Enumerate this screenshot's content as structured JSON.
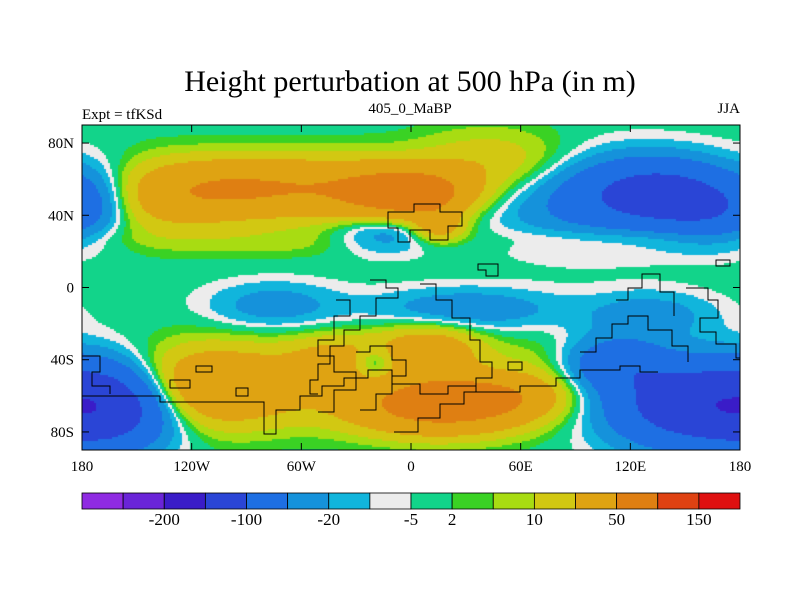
{
  "chart_data": {
    "type": "heatmap",
    "title": "Height perturbation at 500 hPa (in m)",
    "left_string": "Expt = tfKSd",
    "center_string": "405_0_MaBP",
    "right_string": "JJA",
    "xlim": [
      -180,
      180
    ],
    "ylim": [
      -90,
      90
    ],
    "x_ticks": [
      {
        "value": -180,
        "label": "180"
      },
      {
        "value": -120,
        "label": "120W"
      },
      {
        "value": -60,
        "label": "60W"
      },
      {
        "value": 0,
        "label": "0"
      },
      {
        "value": 60,
        "label": "60E"
      },
      {
        "value": 120,
        "label": "120E"
      },
      {
        "value": 180,
        "label": "180"
      }
    ],
    "y_ticks": [
      {
        "value": 80,
        "label": "80N"
      },
      {
        "value": 40,
        "label": "40N"
      },
      {
        "value": 0,
        "label": "0"
      },
      {
        "value": -40,
        "label": "40S"
      },
      {
        "value": -80,
        "label": "80S"
      }
    ],
    "colorbar": {
      "colors": [
        "#8f2be2",
        "#6a24d8",
        "#3a1cc8",
        "#2a45d6",
        "#1e6fe3",
        "#1592db",
        "#11b5dc",
        "#ececec",
        "#12d48a",
        "#3ad224",
        "#a8dc12",
        "#d2c812",
        "#dfa312",
        "#df7f12",
        "#df4212",
        "#df1010"
      ],
      "labels": [
        {
          "after_index": 1,
          "label": "-200"
        },
        {
          "after_index": 3,
          "label": "-100"
        },
        {
          "after_index": 5,
          "label": "-20"
        },
        {
          "after_index": 7,
          "label": "-5"
        },
        {
          "after_index": 8,
          "label": "2"
        },
        {
          "after_index": 10,
          "label": "10"
        },
        {
          "after_index": 12,
          "label": "50"
        },
        {
          "after_index": 14,
          "label": "150"
        }
      ]
    },
    "features": [
      {
        "lon": -95,
        "lat": 55,
        "value": 40,
        "slon": 30,
        "slat": 11
      },
      {
        "lon": -135,
        "lat": 50,
        "value": 25,
        "slon": 30,
        "slat": 14
      },
      {
        "lon": -40,
        "lat": 55,
        "value": 35,
        "slon": 30,
        "slat": 12
      },
      {
        "lon": 0,
        "lat": 52,
        "value": 75,
        "slon": 22,
        "slat": 9
      },
      {
        "lon": 45,
        "lat": 68,
        "value": 20,
        "slon": 30,
        "slat": 13
      },
      {
        "lon": 90,
        "lat": 48,
        "value": -20,
        "slon": 35,
        "slat": 17
      },
      {
        "lon": 135,
        "lat": 52,
        "value": -60,
        "slon": 28,
        "slat": 13
      },
      {
        "lon": 165,
        "lat": 42,
        "value": -30,
        "slon": 20,
        "slat": 12
      },
      {
        "lon": -170,
        "lat": 50,
        "value": -15,
        "slon": 15,
        "slat": 14
      },
      {
        "lon": -15,
        "lat": 30,
        "value": -18,
        "slon": 20,
        "slat": 8
      },
      {
        "lon": 15,
        "lat": 34,
        "value": 30,
        "slon": 10,
        "slat": 6
      },
      {
        "lon": 120,
        "lat": 28,
        "value": 8,
        "slon": 50,
        "slat": 5
      },
      {
        "lon": -70,
        "lat": 25,
        "value": 6,
        "slon": 45,
        "slat": 6
      },
      {
        "lon": -75,
        "lat": -10,
        "value": -15,
        "slon": 25,
        "slat": 9
      },
      {
        "lon": 30,
        "lat": -12,
        "value": -18,
        "slon": 35,
        "slat": 8
      },
      {
        "lon": 130,
        "lat": -15,
        "value": -15,
        "slon": 25,
        "slat": 9
      },
      {
        "lon": -110,
        "lat": -55,
        "value": 50,
        "slon": 35,
        "slat": 15
      },
      {
        "lon": -40,
        "lat": -40,
        "value": 25,
        "slon": 20,
        "slat": 10
      },
      {
        "lon": 10,
        "lat": -35,
        "value": 35,
        "slon": 20,
        "slat": 10
      },
      {
        "lon": 15,
        "lat": -65,
        "value": 70,
        "slon": 35,
        "slat": 11
      },
      {
        "lon": -20,
        "lat": -42,
        "value": -25,
        "slon": 8,
        "slat": 6
      },
      {
        "lon": 75,
        "lat": -45,
        "value": 10,
        "slon": 20,
        "slat": 12
      },
      {
        "lon": 110,
        "lat": -42,
        "value": -35,
        "slon": 20,
        "slat": 10
      },
      {
        "lon": 150,
        "lat": -65,
        "value": -70,
        "slon": 30,
        "slat": 16
      },
      {
        "lon": -165,
        "lat": -65,
        "value": -80,
        "slon": 25,
        "slat": 16
      },
      {
        "lon": 45,
        "lat": -60,
        "value": 25,
        "slon": 25,
        "slat": 8
      }
    ]
  }
}
